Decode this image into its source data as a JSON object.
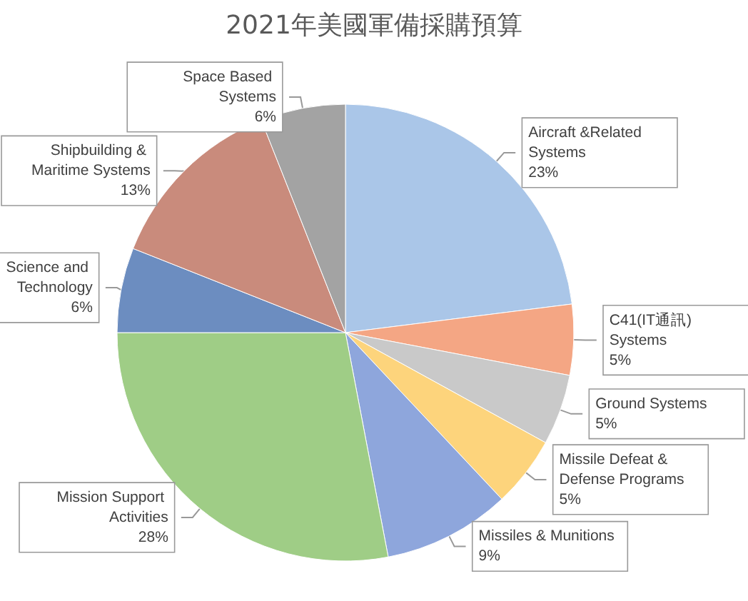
{
  "chart_data": {
    "type": "pie",
    "title": "2021年美國軍備採購預算",
    "categories": [
      "Aircraft &Related Systems",
      "C41(IT通訊) Systems",
      "Ground Systems",
      "Missile Defeat & Defense Programs",
      "Missiles & Munitions",
      "Mission Support Activities",
      "Science and Technology",
      "Shipbuilding & Maritime Systems",
      "Space Based Systems"
    ],
    "values": [
      23,
      5,
      5,
      5,
      9,
      28,
      6,
      13,
      6
    ],
    "value_labels": [
      "23%",
      "5%",
      "5%",
      "5%",
      "9%",
      "28%",
      "6%",
      "13%",
      "6%"
    ],
    "colors": [
      "#aac6e8",
      "#f4a684",
      "#c9c9c9",
      "#fdd47c",
      "#8ea6dc",
      "#9fcd86",
      "#6c8dc0",
      "#c98b7c",
      "#a3a3a3"
    ],
    "legend": false
  }
}
